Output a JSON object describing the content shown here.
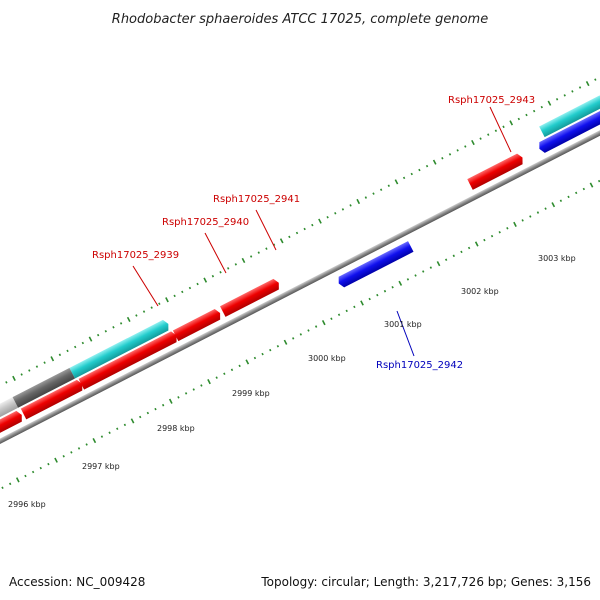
{
  "title": "Rhodobacter sphaeroides ATCC 17025, complete genome",
  "footer": {
    "accession": "Accession: NC_009428",
    "summary": "Topology: circular; Length: 3,217,726 bp; Genes: 3,156"
  },
  "colors": {
    "forward_gene": "#ee0000",
    "reverse_gene": "#1010ee",
    "cyan_feature": "#22cccc",
    "dark_gray_feature": "#666666",
    "light_gray_feature": "#c8c8c8",
    "backbone": "#888888",
    "tick": "#2e8b2e",
    "forward_label": "#cc0000",
    "reverse_label": "#0000bb"
  },
  "ticks": {
    "labels": [
      "2996 kbp",
      "2997 kbp",
      "2998 kbp",
      "2999 kbp",
      "3000 kbp",
      "3001 kbp",
      "3002 kbp",
      "3003 kbp"
    ]
  },
  "gene_labels": [
    {
      "text": "Rsph17025_2939",
      "strand": "forward"
    },
    {
      "text": "Rsph17025_2940",
      "strand": "forward"
    },
    {
      "text": "Rsph17025_2941",
      "strand": "forward"
    },
    {
      "text": "Rsph17025_2942",
      "strand": "reverse"
    },
    {
      "text": "Rsph17025_2943",
      "strand": "forward"
    }
  ]
}
